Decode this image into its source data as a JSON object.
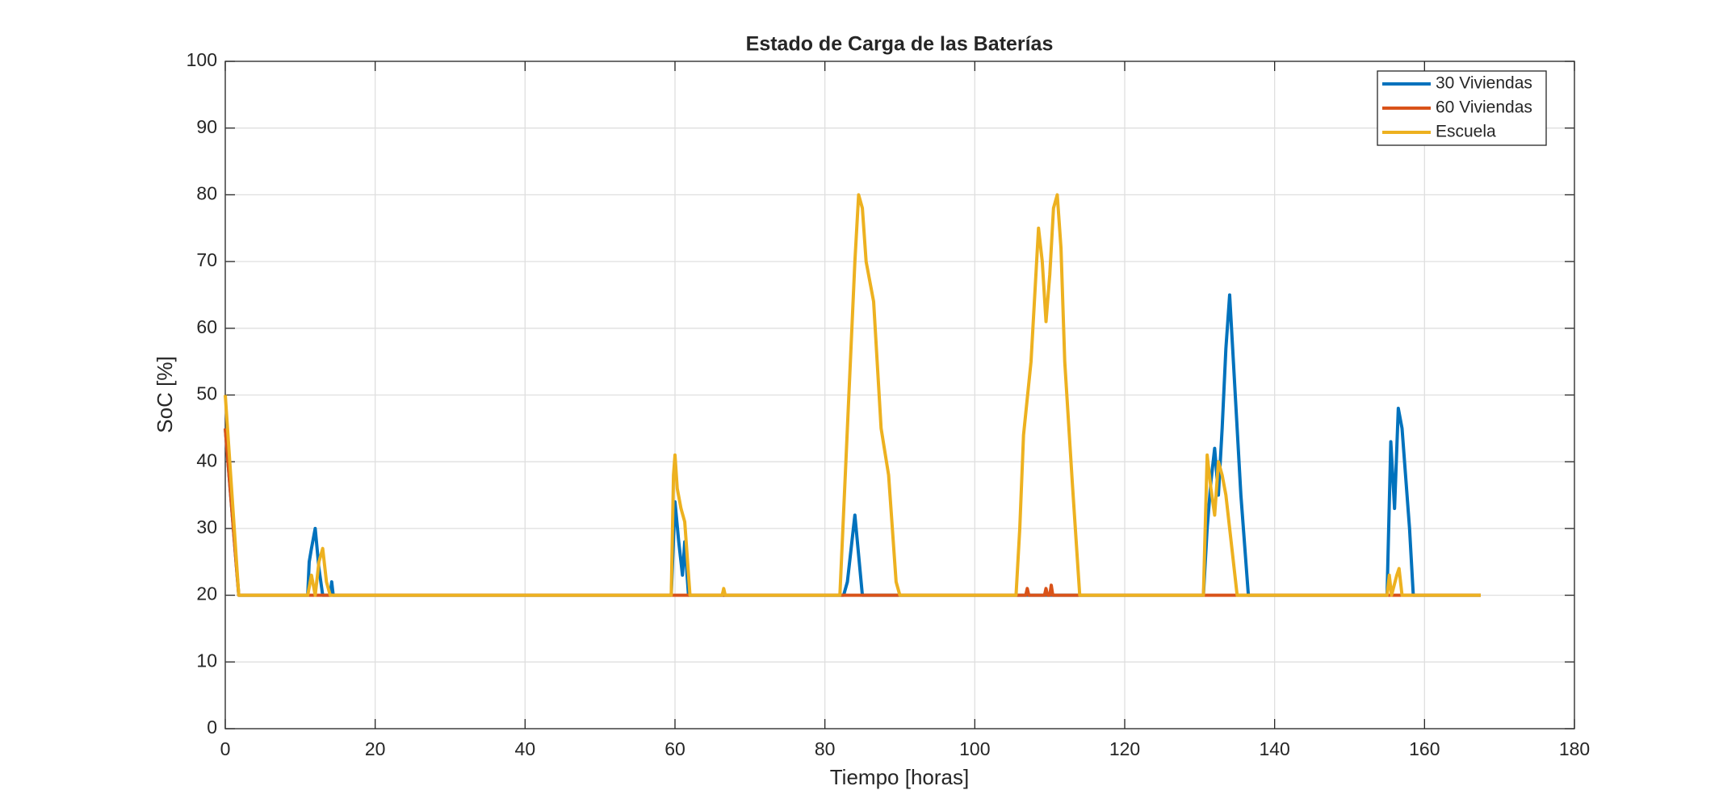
{
  "chart_data": {
    "type": "line",
    "title": "Estado de Carga de las Baterías",
    "xlabel": "Tiempo [horas]",
    "ylabel": "SoC [%]",
    "xlim": [
      0,
      180
    ],
    "xticks": [
      0,
      20,
      40,
      60,
      80,
      100,
      120,
      140,
      160,
      180
    ],
    "ylim": [
      0,
      100
    ],
    "yticks": [
      0,
      10,
      20,
      30,
      40,
      50,
      60,
      70,
      80,
      90,
      100
    ],
    "grid": true,
    "legend": "upper right",
    "series": [
      {
        "name": "30 Viviendas",
        "color": "#0072bd",
        "x": [
          0,
          1.8,
          11,
          11.2,
          11.5,
          12,
          12.5,
          13,
          14,
          14.2,
          14.4,
          59.5,
          60,
          60.5,
          61,
          61.3,
          61.8,
          82.5,
          83,
          84,
          85,
          130.5,
          131,
          131.5,
          132,
          132.5,
          133,
          133.5,
          134,
          134.5,
          135.5,
          136.5,
          155,
          155.5,
          156,
          156.5,
          157,
          158,
          158.5,
          167.5
        ],
        "values": [
          45,
          20,
          20,
          25,
          27,
          30,
          24,
          20,
          20,
          22,
          20,
          20,
          34,
          28,
          23,
          28,
          20,
          20,
          22,
          32,
          20,
          20,
          30,
          37,
          42,
          35,
          45,
          57,
          65,
          55,
          35,
          20,
          20,
          43,
          33,
          48,
          45,
          30,
          20,
          20
        ]
      },
      {
        "name": "60 Viviendas",
        "color": "#d95319",
        "x": [
          0,
          1.8,
          106.8,
          107,
          107.2,
          109.3,
          109.5,
          109.7,
          110,
          110.2,
          110.4,
          167.5
        ],
        "values": [
          45,
          20,
          20,
          21,
          20,
          20,
          21,
          20,
          20,
          21.5,
          20,
          20
        ]
      },
      {
        "name": "Escuela",
        "color": "#edb120",
        "x": [
          0,
          1.8,
          11,
          11.5,
          12,
          12.5,
          13,
          13.5,
          14,
          59.5,
          59.8,
          60,
          60.3,
          60.8,
          61.3,
          62,
          66.3,
          66.5,
          66.7,
          82,
          83,
          84,
          84.5,
          85,
          85.5,
          86.5,
          87.5,
          88.5,
          89.5,
          90,
          105.5,
          106,
          106.5,
          107.5,
          108.5,
          109,
          109.5,
          110,
          110.5,
          111,
          111.5,
          112,
          113,
          114,
          130.5,
          131,
          131.5,
          132,
          132.5,
          133,
          133.5,
          134,
          135,
          155,
          155.3,
          155.6,
          156.3,
          156.6,
          157,
          167.5
        ],
        "values": [
          50,
          20,
          20,
          23,
          20,
          25,
          27,
          22,
          20,
          20,
          38,
          41,
          36,
          33,
          31,
          20,
          20,
          21,
          20,
          20,
          45,
          70,
          80,
          78,
          70,
          64,
          45,
          38,
          22,
          20,
          20,
          30,
          44,
          55,
          75,
          70,
          61,
          68,
          78,
          80,
          72,
          55,
          37,
          20,
          20,
          41,
          36,
          32,
          40,
          38,
          35,
          30,
          20,
          20,
          23,
          20,
          23,
          24,
          20,
          20
        ]
      }
    ]
  }
}
